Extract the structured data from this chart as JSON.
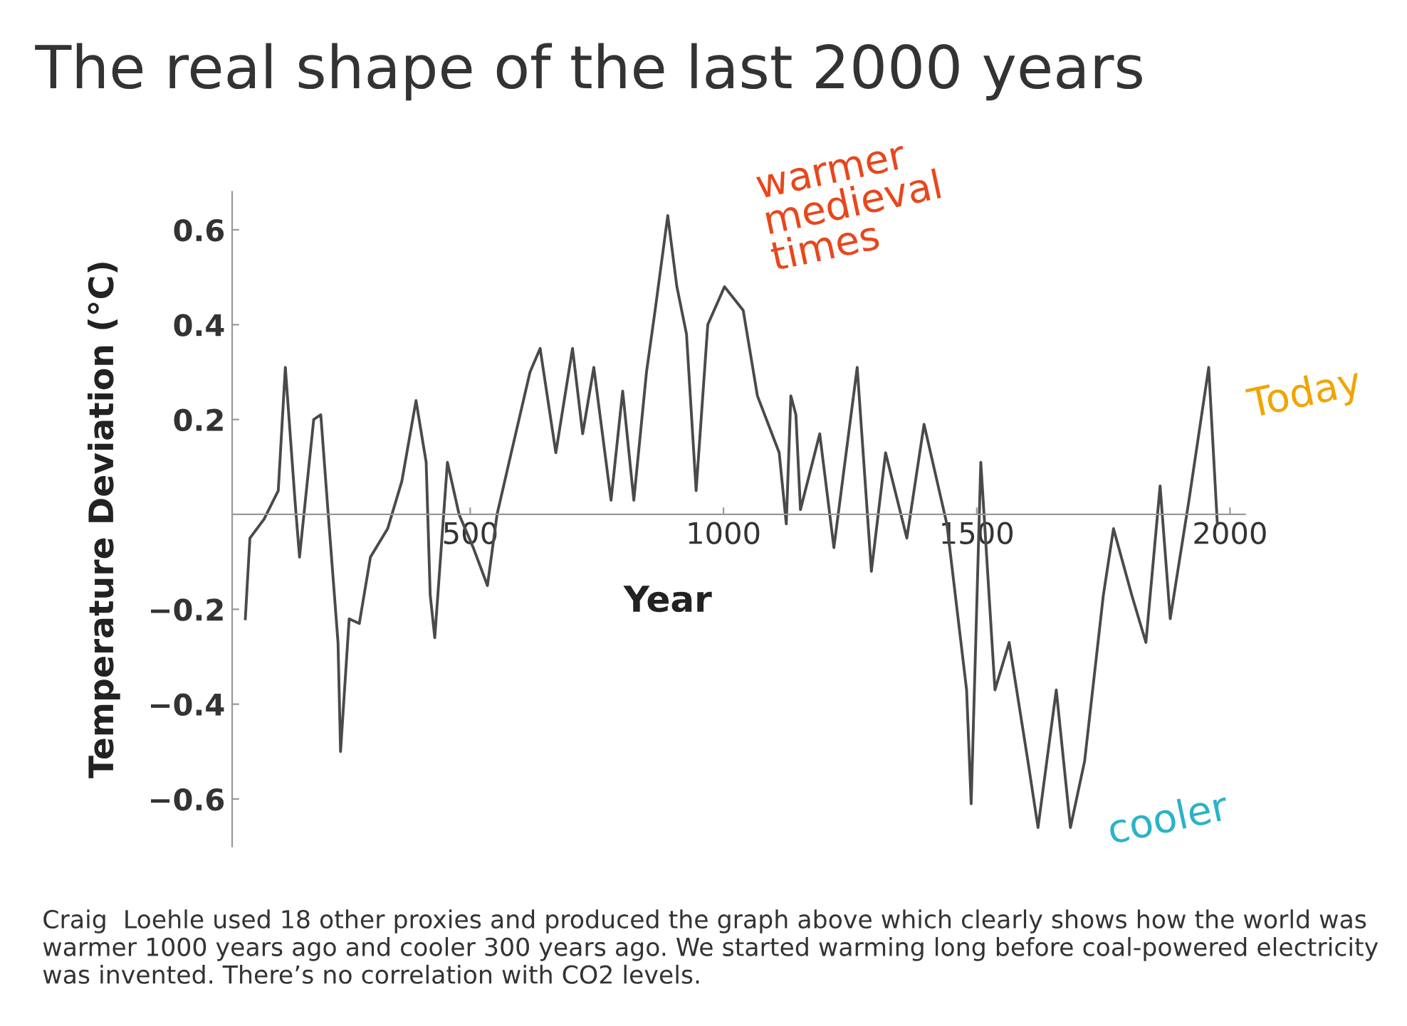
{
  "chart_data": {
    "type": "line",
    "title": "The real shape of the last 2000 years",
    "xlabel": "Year",
    "ylabel": "Temperature Deviation (°C)",
    "x": [
      56,
      65,
      93,
      121,
      135,
      154,
      163,
      191,
      205,
      219,
      239,
      244,
      261,
      281,
      303,
      337,
      365,
      393,
      413,
      421,
      430,
      455,
      478,
      506,
      534,
      553,
      581,
      618,
      638,
      669,
      702,
      722,
      744,
      778,
      801,
      823,
      848,
      865,
      890,
      908,
      927,
      946,
      969,
      1002,
      1039,
      1067,
      1110,
      1124,
      1133,
      1143,
      1152,
      1190,
      1218,
      1264,
      1292,
      1320,
      1362,
      1396,
      1441,
      1480,
      1489,
      1508,
      1536,
      1564,
      1601,
      1621,
      1657,
      1685,
      1713,
      1750,
      1770,
      1806,
      1834,
      1862,
      1882,
      1919,
      1958,
      1975
    ],
    "series": [
      {
        "color": "#4a4a4a",
        "values": [
          -0.22,
          -0.05,
          -0.01,
          0.05,
          0.31,
          0.03,
          -0.09,
          0.2,
          0.21,
          0.01,
          -0.27,
          -0.5,
          -0.22,
          -0.23,
          -0.09,
          -0.03,
          0.07,
          0.24,
          0.11,
          -0.17,
          -0.26,
          0.11,
          0.0,
          -0.07,
          -0.15,
          0.0,
          0.13,
          0.3,
          0.35,
          0.13,
          0.35,
          0.17,
          0.31,
          0.03,
          0.26,
          0.03,
          0.3,
          0.43,
          0.63,
          0.48,
          0.38,
          0.05,
          0.4,
          0.48,
          0.43,
          0.25,
          0.13,
          -0.02,
          0.25,
          0.21,
          0.01,
          0.17,
          -0.07,
          0.31,
          -0.12,
          0.13,
          -0.05,
          0.19,
          -0.02,
          -0.37,
          -0.61,
          0.11,
          -0.37,
          -0.27,
          -0.52,
          -0.66,
          -0.37,
          -0.66,
          -0.52,
          -0.17,
          -0.03,
          -0.17,
          -0.27,
          0.06,
          -0.22,
          0.03,
          0.31,
          -0.02
        ]
      }
    ],
    "xlim": [
      30,
      2030
    ],
    "ylim": [
      -0.7,
      0.68
    ],
    "xticks": [
      500,
      1000,
      1500,
      2000
    ],
    "yticks": [
      {
        "value": -0.6,
        "label": "−0.6"
      },
      {
        "value": -0.4,
        "label": "−0.4"
      },
      {
        "value": -0.2,
        "label": "−0.2"
      },
      0.2,
      0.4,
      0.6
    ],
    "grid": false,
    "legend": false,
    "marker": "none",
    "line_style": "solid",
    "annotations": [
      "warmer\nmedieval\ntimes",
      "Today",
      "cooler",
      "Craig  Loehle used 18 other proxies and produced the graph above which clearly shows how the world was warmer 1000 years ago and cooler 300 years ago. We started warming long before coal-powered electricity was invented. There’s no correlation with CO2 levels."
    ]
  }
}
